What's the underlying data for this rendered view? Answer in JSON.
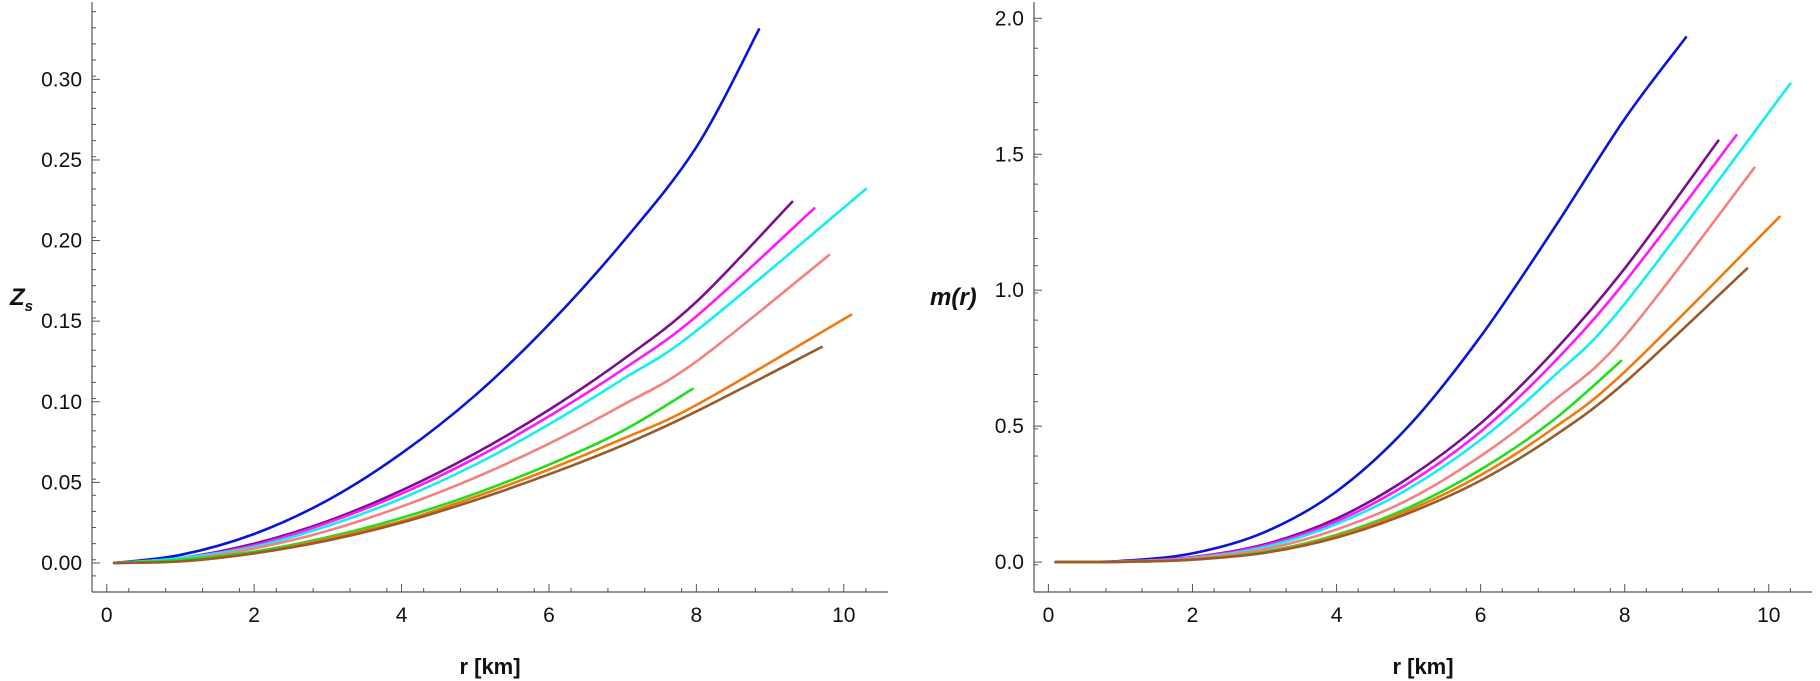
{
  "chart_data": [
    {
      "type": "line",
      "xlabel": "r [km]",
      "ylabel": {
        "main": "Z",
        "sub": "s"
      },
      "xlim": [
        -0.2,
        10.6
      ],
      "ylim": [
        -0.018,
        0.348
      ],
      "xticks": [
        0,
        2,
        4,
        6,
        8,
        10
      ],
      "yticks": [
        0.0,
        0.05,
        0.1,
        0.15,
        0.2,
        0.25,
        0.3
      ],
      "ytick_labels": [
        "0.00",
        "0.05",
        "0.10",
        "0.15",
        "0.20",
        "0.25",
        "0.30"
      ],
      "series": [
        {
          "color": "#0a14d8",
          "x": [
            0.1,
            1,
            2,
            3,
            4,
            5,
            6,
            7,
            8,
            8.85
          ],
          "y": [
            0,
            0.005,
            0.018,
            0.039,
            0.068,
            0.104,
            0.148,
            0.199,
            0.258,
            0.331
          ]
        },
        {
          "color": "#7a0f8c",
          "x": [
            0.1,
            1,
            2,
            3,
            4,
            5,
            6,
            7,
            8,
            9.3
          ],
          "y": [
            0,
            0.003,
            0.012,
            0.026,
            0.045,
            0.068,
            0.095,
            0.126,
            0.162,
            0.224
          ]
        },
        {
          "color": "#ff18ff",
          "x": [
            0.1,
            1,
            2,
            3,
            4,
            5,
            6,
            7,
            8,
            9.6
          ],
          "y": [
            0,
            0.003,
            0.011,
            0.025,
            0.043,
            0.065,
            0.091,
            0.12,
            0.153,
            0.22
          ]
        },
        {
          "color": "#12eef4",
          "x": [
            0.1,
            1,
            2,
            3,
            4,
            5,
            6,
            7,
            8,
            10.3
          ],
          "y": [
            0,
            0.003,
            0.01,
            0.023,
            0.04,
            0.061,
            0.086,
            0.114,
            0.144,
            0.232
          ]
        },
        {
          "color": "#f48080",
          "x": [
            0.1,
            1,
            2,
            3,
            4,
            5,
            6,
            7,
            8,
            9.8
          ],
          "y": [
            0,
            0.002,
            0.009,
            0.02,
            0.035,
            0.053,
            0.074,
            0.098,
            0.125,
            0.191
          ]
        },
        {
          "color": "#22dd1e",
          "x": [
            0.1,
            1,
            2,
            3,
            4,
            5,
            6,
            7,
            7.95
          ],
          "y": [
            0,
            0.002,
            0.007,
            0.016,
            0.028,
            0.043,
            0.061,
            0.082,
            0.108
          ]
        },
        {
          "color": "#f07a10",
          "x": [
            0.1,
            1,
            2,
            3,
            4,
            5,
            6,
            7,
            8,
            10.1
          ],
          "y": [
            0,
            0.001,
            0.006,
            0.015,
            0.026,
            0.041,
            0.058,
            0.077,
            0.098,
            0.154
          ]
        },
        {
          "color": "#9a5a2a",
          "x": [
            0.1,
            1,
            2,
            3,
            4,
            5,
            6,
            7,
            8,
            9.7
          ],
          "y": [
            0,
            0.001,
            0.006,
            0.014,
            0.025,
            0.039,
            0.055,
            0.073,
            0.094,
            0.134
          ]
        }
      ]
    },
    {
      "type": "line",
      "xlabel": "r [km]",
      "ylabel": "m(r)",
      "xlim": [
        -0.2,
        10.6
      ],
      "ylim": [
        -0.11,
        2.06
      ],
      "xticks": [
        0,
        2,
        4,
        6,
        8,
        10
      ],
      "yticks": [
        0.0,
        0.5,
        1.0,
        1.5,
        2.0
      ],
      "ytick_labels": [
        "0.0",
        "0.5",
        "1.0",
        "1.5",
        "2.0"
      ],
      "series": [
        {
          "color": "#0a14d8",
          "x": [
            0.1,
            1,
            2,
            3,
            4,
            5,
            6,
            7,
            8,
            8.85
          ],
          "y": [
            0,
            0.004,
            0.032,
            0.11,
            0.26,
            0.5,
            0.83,
            1.22,
            1.63,
            1.93
          ]
        },
        {
          "color": "#7a0f8c",
          "x": [
            0.1,
            1,
            2,
            3,
            4,
            5,
            6,
            7,
            8,
            9.3
          ],
          "y": [
            0,
            0.002,
            0.018,
            0.065,
            0.16,
            0.31,
            0.51,
            0.77,
            1.08,
            1.55
          ]
        },
        {
          "color": "#ff18ff",
          "x": [
            0.1,
            1,
            2,
            3,
            4,
            5,
            6,
            7,
            8,
            9.55
          ],
          "y": [
            0,
            0.002,
            0.017,
            0.061,
            0.15,
            0.29,
            0.48,
            0.73,
            1.03,
            1.57
          ]
        },
        {
          "color": "#12eef4",
          "x": [
            0.1,
            1,
            2,
            3,
            4,
            5,
            6,
            7,
            8,
            10.3
          ],
          "y": [
            0,
            0.002,
            0.015,
            0.055,
            0.14,
            0.27,
            0.45,
            0.68,
            0.95,
            1.76
          ]
        },
        {
          "color": "#f48080",
          "x": [
            0.1,
            1,
            2,
            3,
            4,
            5,
            6,
            7,
            8,
            9.8
          ],
          "y": [
            0,
            0.002,
            0.013,
            0.047,
            0.12,
            0.23,
            0.39,
            0.59,
            0.83,
            1.45
          ]
        },
        {
          "color": "#22dd1e",
          "x": [
            0.1,
            1,
            2,
            3,
            4,
            5,
            6,
            7,
            7.95
          ],
          "y": [
            0,
            0.001,
            0.01,
            0.038,
            0.1,
            0.2,
            0.34,
            0.52,
            0.74
          ]
        },
        {
          "color": "#f07a10",
          "x": [
            0.1,
            1,
            2,
            3,
            4,
            5,
            6,
            7,
            8,
            10.15
          ],
          "y": [
            0,
            0.001,
            0.009,
            0.035,
            0.095,
            0.19,
            0.32,
            0.49,
            0.7,
            1.27
          ]
        },
        {
          "color": "#9a5a2a",
          "x": [
            0.1,
            1,
            2,
            3,
            4,
            5,
            6,
            7,
            8,
            9.7
          ],
          "y": [
            0,
            0.001,
            0.009,
            0.034,
            0.09,
            0.18,
            0.3,
            0.46,
            0.66,
            1.08
          ]
        }
      ]
    }
  ]
}
